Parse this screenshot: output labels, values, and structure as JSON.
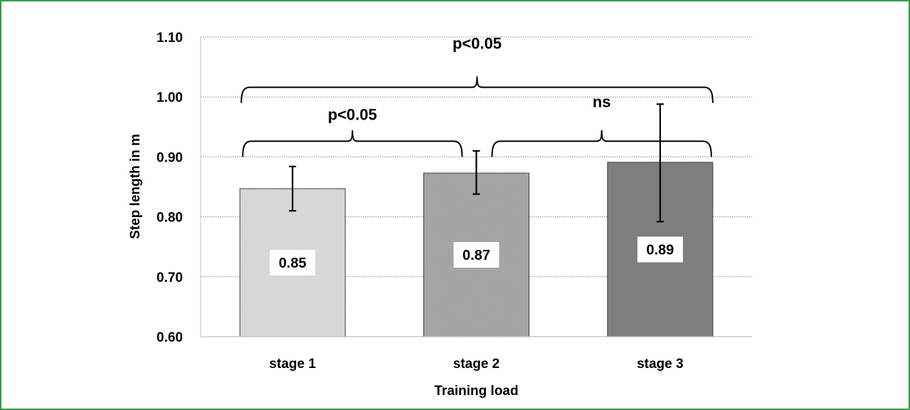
{
  "chart_data": {
    "type": "bar",
    "title": "",
    "xlabel": "Training load",
    "ylabel": "Step length in m",
    "ylim": [
      0.6,
      1.1
    ],
    "yticks": [
      "0.60",
      "0.70",
      "0.80",
      "0.90",
      "1.00",
      "1.10"
    ],
    "categories": [
      "stage 1",
      "stage 2",
      "stage 3"
    ],
    "values": [
      0.847,
      0.873,
      0.891
    ],
    "data_labels": [
      "0.85",
      "0.87",
      "0.89"
    ],
    "error_bars": [
      {
        "low": 0.81,
        "high": 0.884
      },
      {
        "low": 0.838,
        "high": 0.91
      },
      {
        "low": 0.792,
        "high": 0.988
      }
    ],
    "bar_colors": [
      "#d9d9d9",
      "#a6a6a6",
      "#7f7f7f"
    ],
    "grid": true,
    "significance": [
      {
        "from": 0,
        "to": 1,
        "label": "p<0.05",
        "level": 0.9
      },
      {
        "from": 1,
        "to": 2,
        "label": "ns",
        "level": 0.9
      },
      {
        "from": 0,
        "to": 2,
        "label": "p<0.05",
        "level": 0.99
      }
    ]
  }
}
